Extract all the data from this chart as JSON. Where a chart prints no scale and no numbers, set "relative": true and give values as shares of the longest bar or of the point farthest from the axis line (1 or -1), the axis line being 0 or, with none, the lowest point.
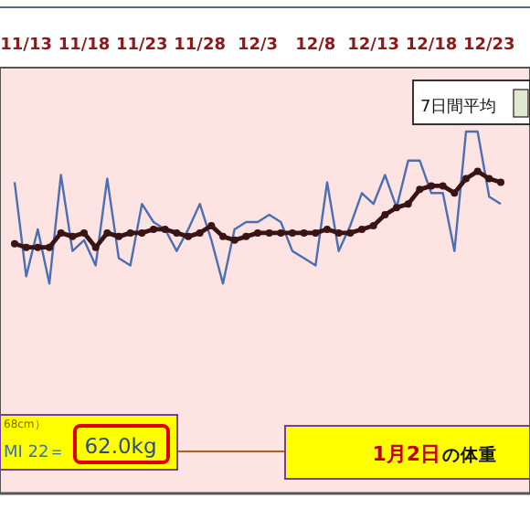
{
  "chart_data": {
    "type": "line",
    "relative": true,
    "categories": [
      null,
      "11/13",
      null,
      null,
      null,
      null,
      "11/18",
      null,
      null,
      null,
      null,
      "11/23",
      null,
      null,
      null,
      null,
      "11/28",
      null,
      null,
      null,
      null,
      "12/3",
      null,
      null,
      null,
      null,
      "12/8",
      null,
      null,
      null,
      null,
      "12/13",
      null,
      null,
      null,
      null,
      "12/18",
      null,
      null,
      null,
      null,
      "12/23",
      null
    ],
    "series": [
      {
        "color": "#4a6fb5",
        "marker": "none",
        "values": [
          0.86,
          0.6,
          0.73,
          0.58,
          0.88,
          0.67,
          0.7,
          0.63,
          0.87,
          0.65,
          0.63,
          0.8,
          0.75,
          0.73,
          0.67,
          0.73,
          0.8,
          0.7,
          0.58,
          0.73,
          0.75,
          0.75,
          0.77,
          0.75,
          0.67,
          0.65,
          0.63,
          0.86,
          0.67,
          0.74,
          0.83,
          0.8,
          0.88,
          0.79,
          0.92,
          0.92,
          0.83,
          0.83,
          0.67,
          1,
          1,
          0.82,
          0.8
        ]
      },
      {
        "name": "7日間平均",
        "color": "#3a1414",
        "marker": "circle",
        "values": [
          0.69,
          0.68,
          0.68,
          0.68,
          0.72,
          0.71,
          0.72,
          0.68,
          0.72,
          0.71,
          0.72,
          0.72,
          0.73,
          0.73,
          0.72,
          0.71,
          0.72,
          0.74,
          0.71,
          0.7,
          0.71,
          0.72,
          0.72,
          0.72,
          0.72,
          0.72,
          0.72,
          0.73,
          0.72,
          0.72,
          0.73,
          0.74,
          0.77,
          0.79,
          0.8,
          0.84,
          0.85,
          0.85,
          0.83,
          0.87,
          0.89,
          0.87,
          0.86
        ]
      }
    ],
    "legend": "top right",
    "grid": false,
    "annotations": [
      "68cm）",
      "MI 22＝",
      "62.0kg",
      "1月2日",
      "の体重"
    ]
  }
}
